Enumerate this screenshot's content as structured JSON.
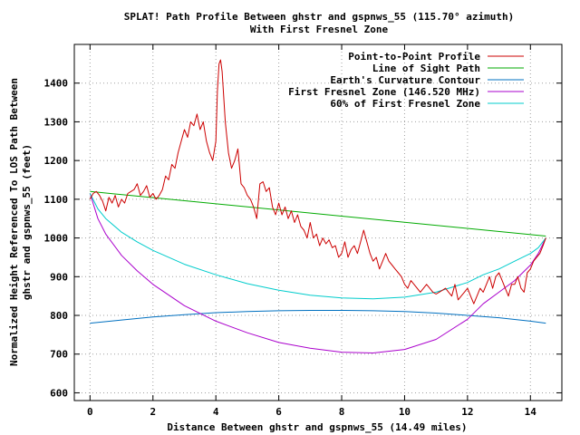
{
  "chart_data": {
    "type": "line",
    "title": "SPLAT! Path Profile Between ghstr and gspnws_55 (115.70° azimuth)",
    "subtitle": "With First Fresnel Zone",
    "xlabel": "Distance Between ghstr and gspnws_55 (14.49 miles)",
    "ylabel_line1": "Normalized Height Referenced To LOS Path Between",
    "ylabel_line2": "ghstr and gspnws_55 (feet)",
    "xlim": [
      -0.5,
      15.0
    ],
    "ylim": [
      580,
      1500
    ],
    "xticks": [
      0,
      2,
      4,
      6,
      8,
      10,
      12,
      14
    ],
    "yticks": [
      600,
      700,
      800,
      900,
      1000,
      1100,
      1200,
      1300,
      1400
    ],
    "grid": true,
    "legend_position": "top-right",
    "series": [
      {
        "name": "Point-to-Point Profile",
        "color": "#cc0000",
        "x": [
          0.0,
          0.1,
          0.2,
          0.3,
          0.4,
          0.5,
          0.6,
          0.7,
          0.8,
          0.9,
          1.0,
          1.1,
          1.2,
          1.3,
          1.4,
          1.5,
          1.6,
          1.7,
          1.8,
          1.9,
          2.0,
          2.1,
          2.2,
          2.3,
          2.4,
          2.5,
          2.6,
          2.7,
          2.8,
          2.9,
          3.0,
          3.1,
          3.2,
          3.3,
          3.4,
          3.5,
          3.6,
          3.7,
          3.8,
          3.9,
          4.0,
          4.05,
          4.1,
          4.15,
          4.2,
          4.3,
          4.4,
          4.5,
          4.6,
          4.7,
          4.8,
          4.9,
          5.0,
          5.1,
          5.2,
          5.3,
          5.4,
          5.5,
          5.6,
          5.7,
          5.8,
          5.9,
          6.0,
          6.1,
          6.2,
          6.3,
          6.4,
          6.5,
          6.6,
          6.7,
          6.8,
          6.9,
          7.0,
          7.1,
          7.2,
          7.3,
          7.4,
          7.5,
          7.6,
          7.7,
          7.8,
          7.9,
          8.0,
          8.1,
          8.2,
          8.3,
          8.4,
          8.5,
          8.6,
          8.7,
          8.8,
          8.9,
          9.0,
          9.1,
          9.2,
          9.3,
          9.4,
          9.5,
          9.6,
          9.7,
          9.8,
          9.9,
          10.0,
          10.1,
          10.2,
          10.3,
          10.4,
          10.5,
          10.6,
          10.7,
          10.8,
          10.9,
          11.0,
          11.1,
          11.2,
          11.3,
          11.4,
          11.5,
          11.6,
          11.7,
          11.8,
          11.9,
          12.0,
          12.1,
          12.2,
          12.3,
          12.4,
          12.5,
          12.6,
          12.7,
          12.8,
          12.9,
          13.0,
          13.1,
          13.2,
          13.3,
          13.4,
          13.5,
          13.6,
          13.7,
          13.8,
          13.9,
          14.0,
          14.1,
          14.2,
          14.3,
          14.4,
          14.49
        ],
        "y": [
          1100,
          1115,
          1120,
          1110,
          1095,
          1070,
          1105,
          1090,
          1110,
          1080,
          1100,
          1090,
          1115,
          1120,
          1125,
          1140,
          1110,
          1120,
          1135,
          1105,
          1115,
          1100,
          1110,
          1125,
          1160,
          1150,
          1190,
          1180,
          1220,
          1250,
          1280,
          1260,
          1300,
          1290,
          1320,
          1280,
          1300,
          1250,
          1220,
          1200,
          1250,
          1380,
          1450,
          1460,
          1430,
          1300,
          1220,
          1180,
          1200,
          1230,
          1140,
          1130,
          1110,
          1100,
          1080,
          1050,
          1140,
          1145,
          1120,
          1130,
          1080,
          1060,
          1090,
          1060,
          1080,
          1050,
          1070,
          1040,
          1060,
          1030,
          1020,
          1000,
          1040,
          1000,
          1010,
          980,
          1000,
          985,
          995,
          975,
          980,
          950,
          960,
          990,
          950,
          970,
          980,
          960,
          990,
          1020,
          990,
          960,
          940,
          950,
          920,
          940,
          960,
          940,
          930,
          920,
          910,
          900,
          880,
          870,
          890,
          880,
          870,
          860,
          870,
          880,
          870,
          860,
          855,
          860,
          865,
          870,
          860,
          850,
          880,
          840,
          850,
          860,
          870,
          850,
          830,
          850,
          870,
          860,
          880,
          900,
          870,
          900,
          910,
          890,
          870,
          850,
          880,
          880,
          900,
          870,
          860,
          910,
          920,
          940,
          950,
          960,
          980,
          1000
        ]
      },
      {
        "name": "Line of Sight Path",
        "color": "#00aa00",
        "x": [
          0,
          14.49
        ],
        "y": [
          1120,
          1005
        ]
      },
      {
        "name": "Earth's Curvature Contour",
        "color": "#0070c0",
        "x": [
          0,
          1,
          2,
          3,
          4,
          5,
          6,
          7,
          7.245,
          8,
          9,
          10,
          11,
          12,
          13,
          14,
          14.49
        ],
        "y": [
          780,
          788,
          796,
          802,
          807,
          810,
          812,
          813,
          813,
          813,
          812,
          810,
          806,
          800,
          794,
          785,
          780
        ]
      },
      {
        "name": "First Fresnel Zone (146.520 MHz)",
        "color": "#aa00cc",
        "x": [
          0,
          0.25,
          0.5,
          1,
          1.5,
          2,
          3,
          4,
          5,
          6,
          7,
          8,
          9,
          10,
          11,
          12,
          12.5,
          13,
          13.5,
          14,
          14.25,
          14.49
        ],
        "y": [
          1115,
          1050,
          1010,
          955,
          915,
          880,
          825,
          785,
          755,
          730,
          715,
          705,
          703,
          712,
          738,
          790,
          830,
          860,
          890,
          930,
          960,
          1000
        ]
      },
      {
        "name": "60% of First Fresnel Zone",
        "color": "#00cccc",
        "x": [
          0,
          0.25,
          0.5,
          1,
          1.5,
          2,
          3,
          4,
          5,
          6,
          7,
          8,
          9,
          10,
          11,
          12,
          12.5,
          13,
          13.5,
          14,
          14.25,
          14.49
        ],
        "y": [
          1115,
          1075,
          1050,
          1015,
          990,
          968,
          932,
          905,
          882,
          865,
          852,
          845,
          843,
          847,
          860,
          885,
          905,
          920,
          940,
          960,
          975,
          1000
        ]
      }
    ]
  }
}
